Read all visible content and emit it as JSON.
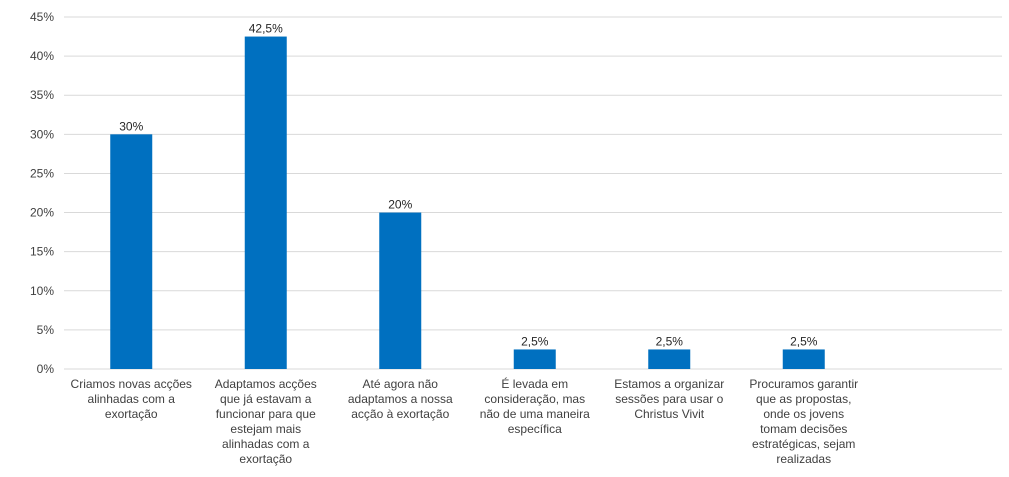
{
  "chart_data": {
    "type": "bar",
    "categories": [
      [
        "Criamos novas acções",
        "alinhadas com a",
        "exortação"
      ],
      [
        "Adaptamos acções",
        "que já estavam a",
        "funcionar para que",
        "estejam mais",
        "alinhadas com a",
        "exortação"
      ],
      [
        "Até agora não",
        "adaptamos a nossa",
        "acção à exortação"
      ],
      [
        "É levada em",
        "consideração, mas",
        "não de uma maneira",
        "específica"
      ],
      [
        "Estamos a organizar",
        "sessões para usar o",
        "Christus Vivit"
      ],
      [
        "Procuramos garantir",
        "que as propostas,",
        "onde os jovens",
        "tomam decisões",
        "estratégicas, sejam",
        "realizadas"
      ]
    ],
    "values": [
      30,
      42.5,
      20,
      2.5,
      2.5,
      2.5
    ],
    "data_labels": [
      "30%",
      "42,5%",
      "20%",
      "2,5%",
      "2,5%",
      "2,5%"
    ],
    "ylim": [
      0,
      45
    ],
    "yticks": [
      "0%",
      "5%",
      "10%",
      "15%",
      "20%",
      "25%",
      "30%",
      "35%",
      "40%",
      "45%"
    ],
    "grid": true,
    "bar_color": "#0070c0",
    "grid_color": "#d9d9d9"
  }
}
